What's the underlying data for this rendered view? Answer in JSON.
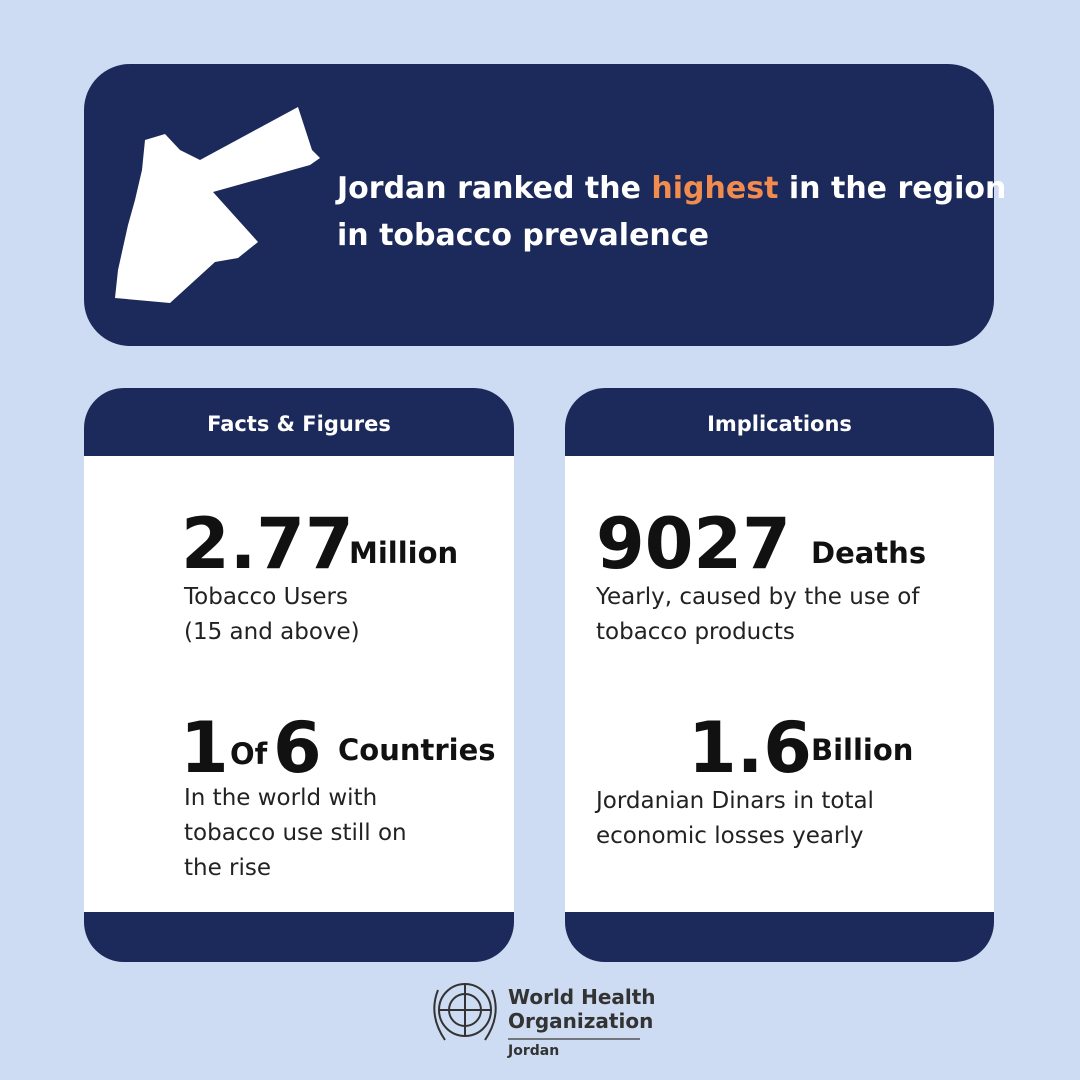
{
  "header": {
    "title_before": "Jordan ranked the",
    "title_highlight": "highest",
    "title_after": "in the region",
    "title_line2": "in tobacco prevalence"
  },
  "facts": {
    "heading": "Facts & Figures",
    "stat1": {
      "number": "2.77",
      "unit": "Million",
      "lines": [
        "Tobacco Users",
        "(15 and above)"
      ]
    },
    "stat2": {
      "number_a": "1",
      "of": "Of",
      "number_b": "6",
      "unit": "Countries",
      "lines": [
        "In the world with",
        "tobacco use still on",
        "the rise"
      ]
    }
  },
  "implications": {
    "heading": "Implications",
    "stat1": {
      "number": "9027",
      "unit": "Deaths",
      "lines": [
        "Yearly, caused by the use of",
        "tobacco products"
      ]
    },
    "stat2": {
      "number": "1.6",
      "unit": "Billion",
      "lines": [
        "Jordanian Dinars in total",
        "economic losses yearly"
      ]
    }
  },
  "footer": {
    "org_line1": "World Health",
    "org_line2": "Organization",
    "country": "Jordan"
  }
}
